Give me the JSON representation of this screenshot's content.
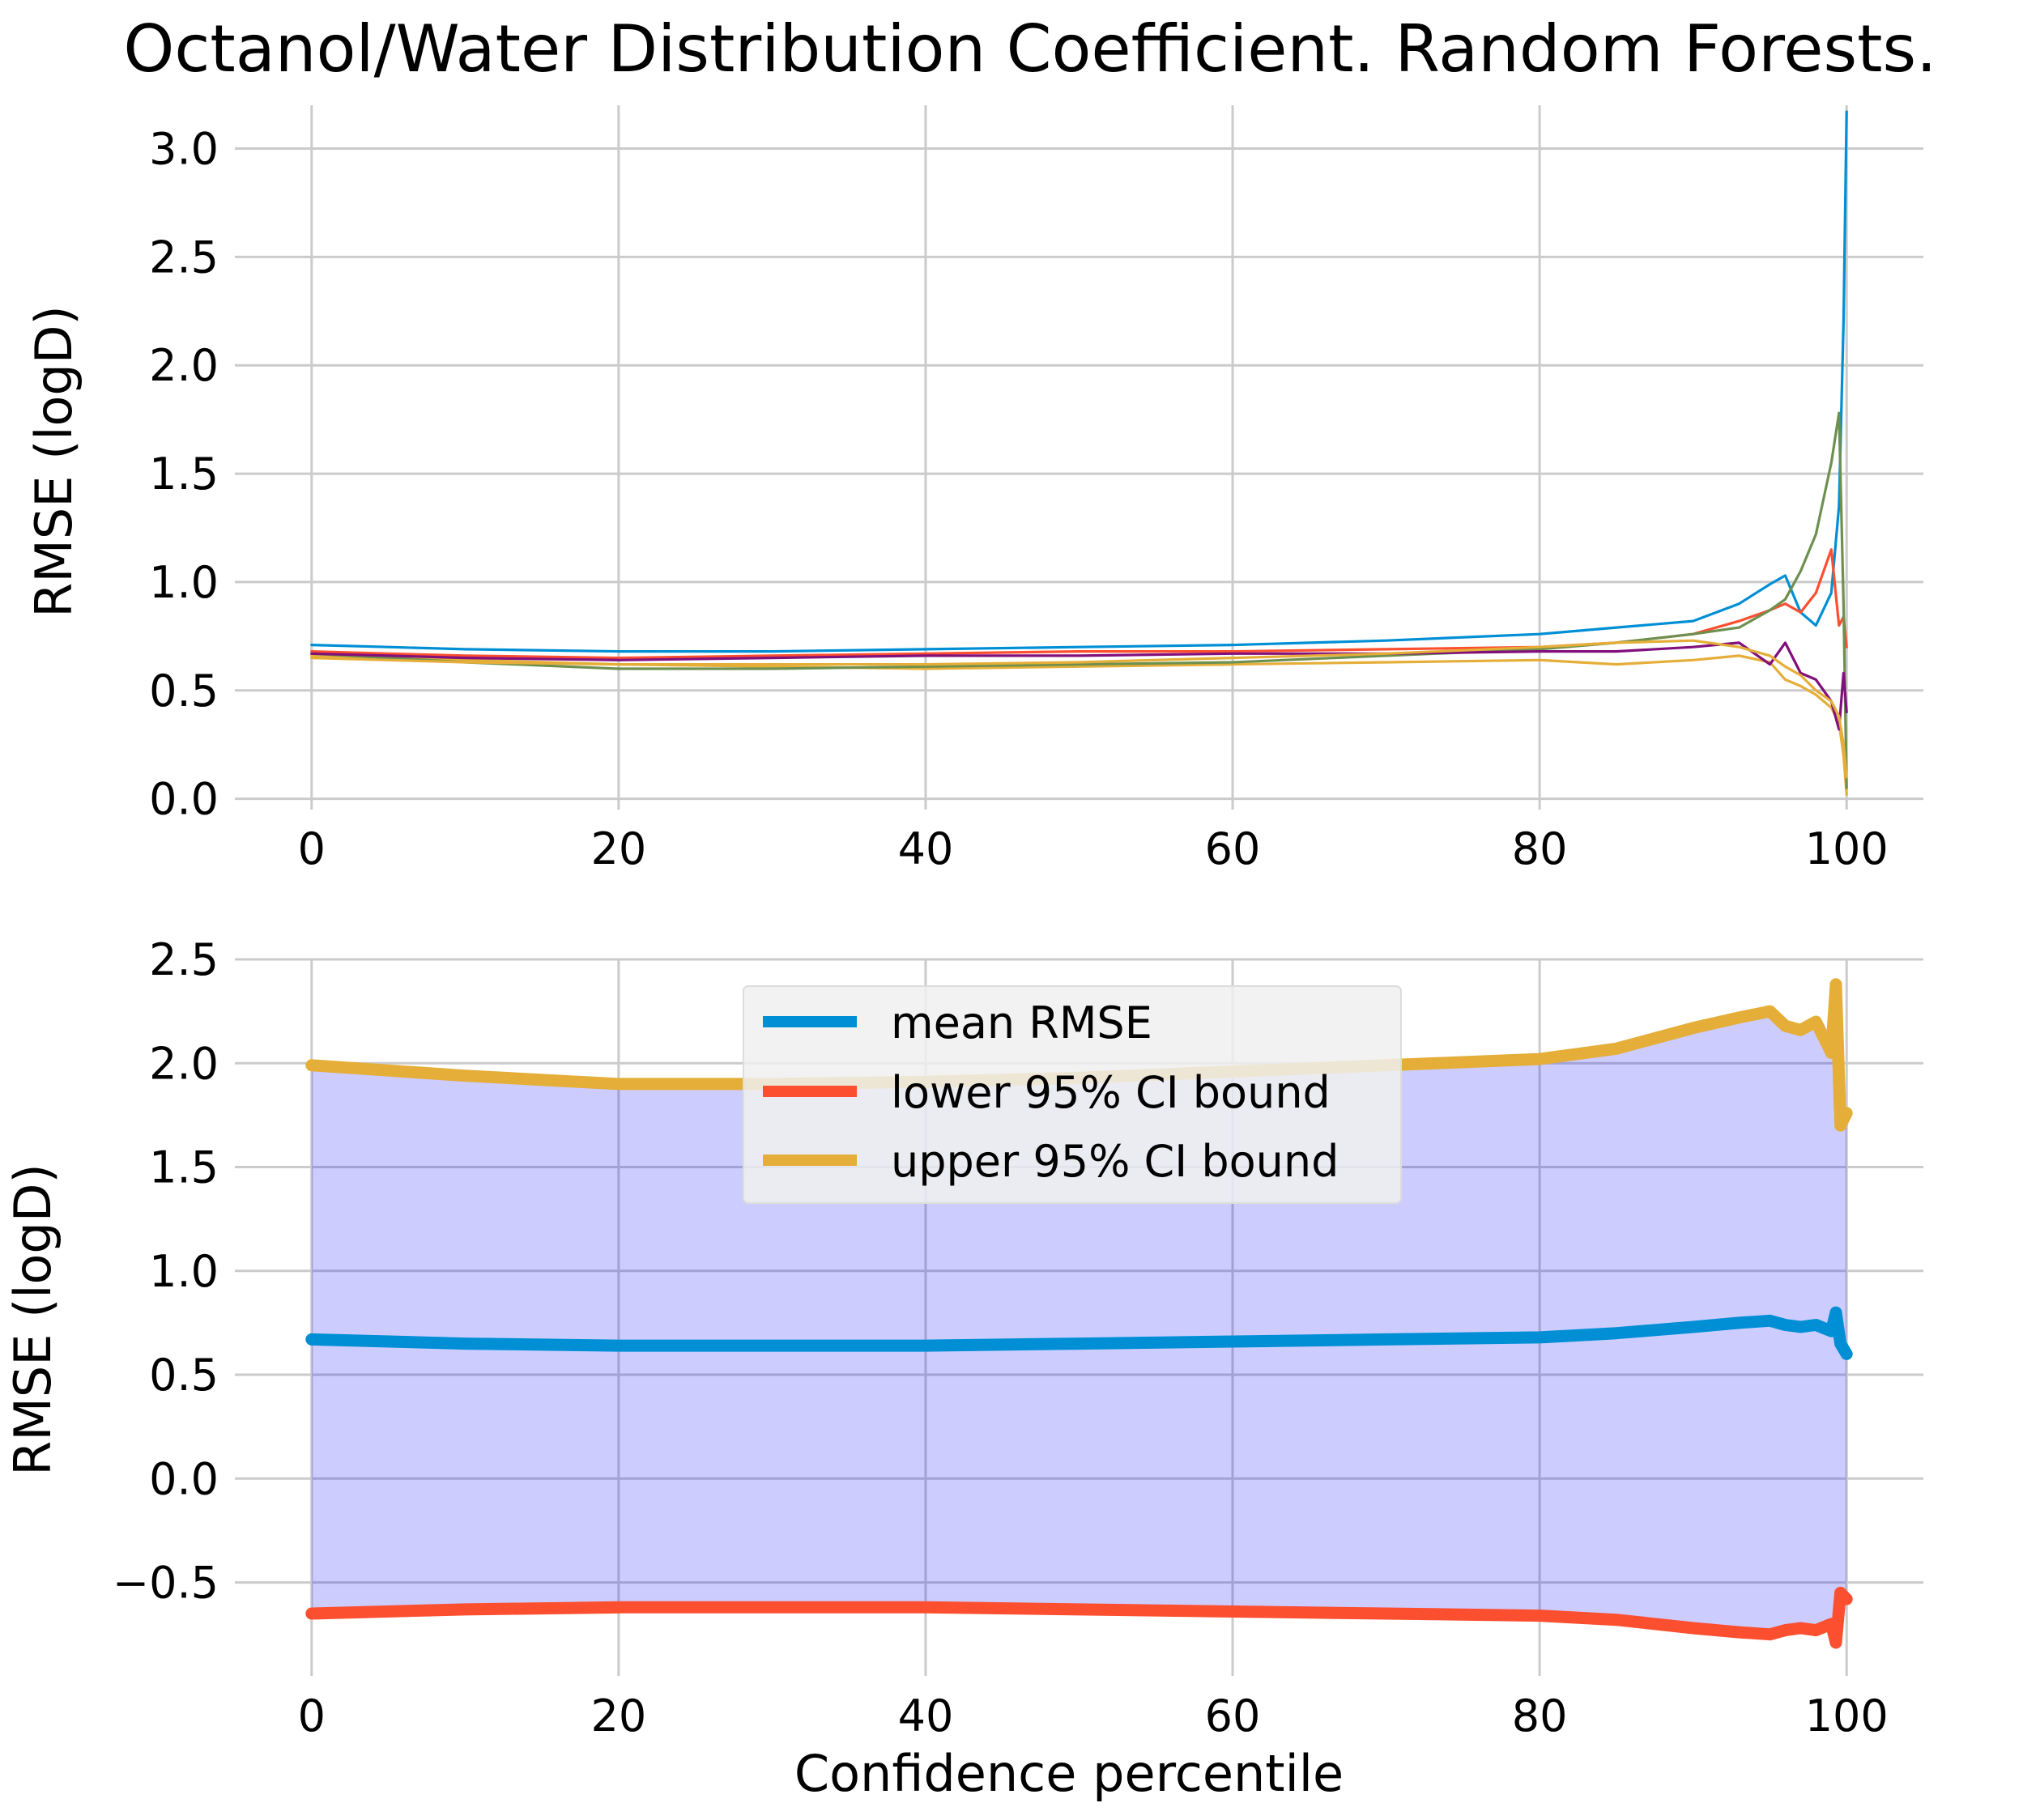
{
  "figure": {
    "title": "Octanol/Water Distribution Coefficient. Random Forests."
  },
  "colors": {
    "grid": "#cbcbcb",
    "band_fill": "#0000ff",
    "series_palette": [
      "#008fd5",
      "#fc4f30",
      "#e5ae38",
      "#6d904f",
      "#810f7c",
      "#e5ae38"
    ]
  },
  "chart_data": [
    {
      "type": "line",
      "ylabel": "RMSE (logD)",
      "xlabel": "",
      "xlim": [
        -5,
        105
      ],
      "ylim": [
        -0.05,
        3.2
      ],
      "xticks": [
        0,
        20,
        40,
        60,
        80,
        100
      ],
      "xtick_labels": [
        "0",
        "20",
        "40",
        "60",
        "80",
        "100"
      ],
      "yticks": [
        0.0,
        0.5,
        1.0,
        1.5,
        2.0,
        2.5,
        3.0
      ],
      "ytick_labels": [
        "0.0",
        "0.5",
        "1.0",
        "1.5",
        "2.0",
        "2.5",
        "3.0"
      ],
      "grid": true,
      "legend": "none",
      "series": [
        {
          "color": "#008fd5",
          "x": [
            0,
            5,
            10,
            20,
            30,
            40,
            50,
            60,
            70,
            80,
            85,
            90,
            93,
            95,
            96,
            97,
            98,
            99,
            99.5,
            99.8,
            100
          ],
          "y": [
            0.71,
            0.7,
            0.69,
            0.68,
            0.68,
            0.69,
            0.7,
            0.71,
            0.73,
            0.76,
            0.79,
            0.82,
            0.9,
            0.99,
            1.03,
            0.86,
            0.8,
            0.95,
            1.35,
            2.2,
            3.17
          ]
        },
        {
          "color": "#fc4f30",
          "x": [
            0,
            5,
            10,
            20,
            30,
            40,
            50,
            60,
            70,
            80,
            85,
            90,
            93,
            95,
            96,
            97,
            98,
            99,
            99.5,
            99.8,
            100
          ],
          "y": [
            0.68,
            0.67,
            0.66,
            0.65,
            0.66,
            0.67,
            0.68,
            0.68,
            0.69,
            0.7,
            0.72,
            0.76,
            0.82,
            0.87,
            0.9,
            0.86,
            0.95,
            1.15,
            0.8,
            0.84,
            0.7
          ]
        },
        {
          "color": "#e5ae38",
          "x": [
            0,
            5,
            10,
            20,
            30,
            40,
            50,
            60,
            70,
            80,
            85,
            90,
            93,
            95,
            96,
            97,
            98,
            99,
            99.5,
            99.8,
            100
          ],
          "y": [
            0.66,
            0.65,
            0.64,
            0.62,
            0.61,
            0.6,
            0.61,
            0.62,
            0.63,
            0.64,
            0.62,
            0.64,
            0.66,
            0.63,
            0.55,
            0.52,
            0.48,
            0.42,
            0.35,
            0.2,
            0.02
          ]
        },
        {
          "color": "#6d904f",
          "x": [
            0,
            5,
            10,
            20,
            30,
            40,
            50,
            60,
            70,
            80,
            85,
            90,
            93,
            95,
            96,
            97,
            98,
            99,
            99.5,
            99.8,
            100
          ],
          "y": [
            0.67,
            0.65,
            0.63,
            0.6,
            0.6,
            0.61,
            0.62,
            0.63,
            0.66,
            0.69,
            0.72,
            0.76,
            0.79,
            0.87,
            0.92,
            1.05,
            1.22,
            1.55,
            1.78,
            0.9,
            0.05
          ]
        },
        {
          "color": "#810f7c",
          "x": [
            0,
            5,
            10,
            20,
            30,
            40,
            50,
            60,
            70,
            80,
            85,
            90,
            93,
            95,
            96,
            97,
            98,
            99,
            99.5,
            99.8,
            100
          ],
          "y": [
            0.67,
            0.66,
            0.65,
            0.64,
            0.65,
            0.66,
            0.66,
            0.67,
            0.67,
            0.68,
            0.68,
            0.7,
            0.72,
            0.62,
            0.72,
            0.58,
            0.55,
            0.45,
            0.32,
            0.58,
            0.4
          ]
        },
        {
          "color": "#e5ae38",
          "x": [
            0,
            5,
            10,
            20,
            30,
            40,
            50,
            60,
            70,
            80,
            85,
            90,
            93,
            95,
            96,
            97,
            98,
            99,
            99.5,
            99.8,
            100
          ],
          "y": [
            0.65,
            0.64,
            0.63,
            0.62,
            0.62,
            0.62,
            0.63,
            0.65,
            0.67,
            0.7,
            0.72,
            0.73,
            0.7,
            0.66,
            0.61,
            0.57,
            0.5,
            0.45,
            0.38,
            0.25,
            0.1
          ]
        }
      ]
    },
    {
      "type": "line",
      "xlabel": "Confidence percentile",
      "ylabel": "RMSE (logD)",
      "xlim": [
        -5,
        105
      ],
      "ylim": [
        -0.95,
        2.5
      ],
      "xticks": [
        0,
        20,
        40,
        60,
        80,
        100
      ],
      "xtick_labels": [
        "0",
        "20",
        "40",
        "60",
        "80",
        "100"
      ],
      "yticks": [
        -0.5,
        0.0,
        0.5,
        1.0,
        1.5,
        2.0,
        2.5
      ],
      "ytick_labels": [
        "−0.5",
        "0.0",
        "0.5",
        "1.0",
        "1.5",
        "2.0",
        "2.5"
      ],
      "grid": true,
      "legend": "upper-center",
      "fill_between": {
        "lower_series": "lower 95% CI bound",
        "upper_series": "upper 95% CI bound",
        "color": "#0000ff",
        "alpha": 0.2
      },
      "series": [
        {
          "name": "mean RMSE",
          "color": "#008fd5",
          "x": [
            0,
            10,
            20,
            30,
            40,
            50,
            60,
            70,
            80,
            85,
            90,
            93,
            95,
            96,
            97,
            98,
            99,
            99.3,
            99.6,
            100
          ],
          "y": [
            0.67,
            0.65,
            0.64,
            0.64,
            0.64,
            0.65,
            0.66,
            0.67,
            0.68,
            0.7,
            0.73,
            0.75,
            0.76,
            0.74,
            0.73,
            0.74,
            0.71,
            0.8,
            0.65,
            0.6
          ]
        },
        {
          "name": "lower 95% CI bound",
          "color": "#fc4f30",
          "x": [
            0,
            10,
            20,
            30,
            40,
            50,
            60,
            70,
            80,
            85,
            90,
            93,
            95,
            96,
            97,
            98,
            99,
            99.3,
            99.6,
            100
          ],
          "y": [
            -0.65,
            -0.63,
            -0.62,
            -0.62,
            -0.62,
            -0.63,
            -0.64,
            -0.65,
            -0.66,
            -0.68,
            -0.72,
            -0.74,
            -0.75,
            -0.73,
            -0.72,
            -0.73,
            -0.7,
            -0.79,
            -0.55,
            -0.58
          ]
        },
        {
          "name": "upper 95% CI bound",
          "color": "#e5ae38",
          "x": [
            0,
            10,
            20,
            30,
            40,
            50,
            60,
            70,
            80,
            85,
            90,
            93,
            95,
            96,
            97,
            98,
            99,
            99.3,
            99.6,
            100
          ],
          "y": [
            1.99,
            1.94,
            1.9,
            1.9,
            1.91,
            1.93,
            1.96,
            1.99,
            2.02,
            2.07,
            2.17,
            2.22,
            2.25,
            2.18,
            2.16,
            2.2,
            2.05,
            2.38,
            1.7,
            1.76
          ]
        }
      ]
    }
  ]
}
